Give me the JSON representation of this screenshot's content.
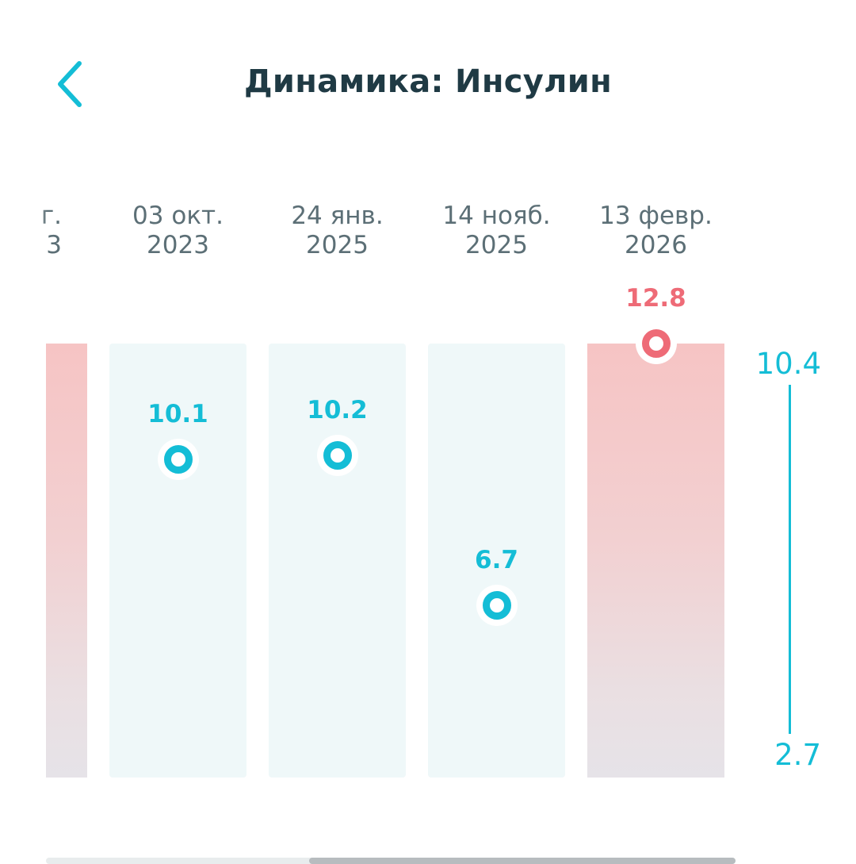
{
  "header": {
    "back_icon": "chevron-left-icon",
    "title": "Динамика: Инсулин"
  },
  "colors": {
    "accent": "#14bdd6",
    "high": "#ee6b77",
    "title": "#1f3a44",
    "date": "#5c6f76"
  },
  "reference_range": {
    "max_label": "10.4",
    "min_label": "2.7",
    "max": 10.4,
    "min": 2.7
  },
  "partial_column": {
    "date_line1": "г.",
    "date_line2": "3",
    "status": "high"
  },
  "chart_data": {
    "type": "scatter",
    "title": "Динамика: Инсулин",
    "categories": [
      "03 окт. 2023",
      "24 янв. 2025",
      "14 нояб. 2025",
      "13 февр. 2026"
    ],
    "series": [
      {
        "values": [
          10.1,
          10.2,
          6.7,
          12.8
        ]
      }
    ],
    "reference_range": [
      2.7,
      10.4
    ],
    "grid": false
  },
  "columns": [
    {
      "date_line1": "03 окт.",
      "date_line2": "2023",
      "value": 10.1,
      "value_label": "10.1",
      "status": "ok"
    },
    {
      "date_line1": "24 янв.",
      "date_line2": "2025",
      "value": 10.2,
      "value_label": "10.2",
      "status": "ok"
    },
    {
      "date_line1": "14 нояб.",
      "date_line2": "2025",
      "value": 6.7,
      "value_label": "6.7",
      "status": "ok"
    },
    {
      "date_line1": "13 февр.",
      "date_line2": "2026",
      "value": 12.8,
      "value_label": "12.8",
      "status": "high"
    }
  ]
}
